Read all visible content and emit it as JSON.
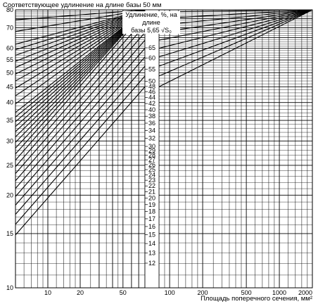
{
  "chart_data": {
    "type": "line",
    "title": "Соответствующее удлинение на длине базы 50 мм",
    "xlabel": "Площадь поперечного сечения, мм²",
    "center_label_lines": [
      "Удлинение, %, на длине",
      "базы 5,65 √S₀"
    ],
    "x_scale": "log",
    "xlim": [
      5,
      2000
    ],
    "x_left_panel_range": [
      5,
      80
    ],
    "x_right_panel_range": [
      80,
      2000
    ],
    "y_scale": "log",
    "ylim": [
      10,
      80
    ],
    "x_ticks_left": [
      10,
      20,
      50
    ],
    "x_ticks_right": [
      100,
      200,
      500,
      1000,
      2000
    ],
    "x_tick_labels_left": [
      "10",
      "20",
      "50"
    ],
    "x_tick_labels_right": [
      "100",
      "200",
      "500",
      "1000",
      "2000"
    ],
    "y_ticks_left": [
      10,
      15,
      20,
      25,
      30,
      35,
      40,
      45,
      50,
      55,
      60,
      70,
      80
    ],
    "y_tick_labels_left": [
      "10",
      "15",
      "20",
      "25",
      "30",
      "35",
      "40",
      "45",
      "50",
      "55",
      "60",
      "70",
      "80"
    ],
    "center_scale_values": [
      12,
      13,
      14,
      15,
      16,
      17,
      18,
      19,
      20,
      21,
      22,
      23,
      24,
      25,
      26,
      27,
      28,
      29,
      30,
      32,
      34,
      36,
      38,
      40,
      42,
      44,
      46,
      48,
      50,
      55,
      60,
      65
    ],
    "center_scale_labels": [
      "12",
      "13",
      "14",
      "15",
      "16",
      "17",
      "18",
      "19",
      "20",
      "21",
      "22",
      "23",
      "24",
      "25",
      "26",
      "27",
      "28",
      "29",
      "30",
      "32",
      "34",
      "36",
      "38",
      "40",
      "42",
      "44",
      "46",
      "48",
      "50",
      "55",
      "60",
      "65"
    ],
    "grid": true
  }
}
